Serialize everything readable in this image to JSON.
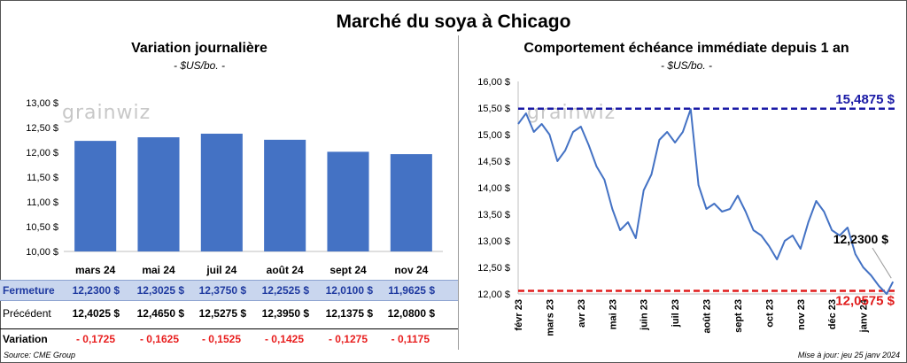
{
  "title": "Marché du soya à Chicago",
  "left_panel": {
    "title": "Variation  journalière",
    "unit": "- $US/bo. -"
  },
  "right_panel": {
    "title": "Comportement  échéance immédiate depuis 1 an",
    "unit": "- $US/bo. -"
  },
  "logo_text": "grainwiz",
  "colors": {
    "bar": "#4472c4",
    "line": "#4472c4",
    "max_line": "#1a1aa6",
    "min_line": "#e01b1b",
    "negative": "#e81e1e"
  },
  "table": {
    "rows": [
      {
        "label": "Fermeture",
        "values": [
          "12,2300  $",
          "12,3025  $",
          "12,3750  $",
          "12,2525  $",
          "12,0100  $",
          "11,9625  $"
        ]
      },
      {
        "label": "Précédent",
        "values": [
          "12,4025  $",
          "12,4650  $",
          "12,5275  $",
          "12,3950  $",
          "12,1375  $",
          "12,0800  $"
        ]
      },
      {
        "label": "Variation",
        "values": [
          "- 0,1725",
          "- 0,1625",
          "- 0,1525",
          "- 0,1425",
          "- 0,1275",
          "- 0,1175"
        ]
      }
    ]
  },
  "footer": {
    "source": "Source: CME Group",
    "updated": "Mise à jour: jeu 25 janv 2024"
  },
  "chart_data": [
    {
      "type": "bar",
      "title": "Variation  journalière",
      "ylabel": "$US/bo.",
      "categories": [
        "mars 24",
        "mai 24",
        "juil 24",
        "août 24",
        "sept 24",
        "nov 24"
      ],
      "values": [
        12.23,
        12.3025,
        12.375,
        12.2525,
        12.01,
        11.9625
      ],
      "ylim": [
        10.0,
        13.0
      ],
      "yticks": [
        10.0,
        10.5,
        11.0,
        11.5,
        12.0,
        12.5,
        13.0
      ],
      "ytick_labels": [
        "10,00 $",
        "10,50 $",
        "11,00 $",
        "11,50 $",
        "12,00 $",
        "12,50 $",
        "13,00 $"
      ]
    },
    {
      "type": "line",
      "title": "Comportement  échéance immédiate depuis 1 an",
      "ylabel": "$US/bo.",
      "ylim": [
        12.0,
        16.0
      ],
      "yticks": [
        12.0,
        12.5,
        13.0,
        13.5,
        14.0,
        14.5,
        15.0,
        15.5,
        16.0
      ],
      "ytick_labels": [
        "12,00 $",
        "12,50 $",
        "13,00 $",
        "13,50 $",
        "14,00 $",
        "14,50 $",
        "15,00 $",
        "15,50 $",
        "16,00 $"
      ],
      "xlabels": [
        "févr 23",
        "mars 23",
        "avr 23",
        "mai 23",
        "juin 23",
        "juil 23",
        "août 23",
        "sept 23",
        "oct 23",
        "nov 23",
        "déc 23",
        "janv 24"
      ],
      "x": [
        0,
        0.25,
        0.5,
        0.75,
        1.0,
        1.25,
        1.5,
        1.75,
        2.0,
        2.25,
        2.5,
        2.75,
        3.0,
        3.25,
        3.5,
        3.75,
        4.0,
        4.25,
        4.5,
        4.75,
        5.0,
        5.25,
        5.5,
        5.75,
        6.0,
        6.25,
        6.5,
        6.75,
        7.0,
        7.25,
        7.5,
        7.75,
        8.0,
        8.25,
        8.5,
        8.75,
        9.0,
        9.25,
        9.5,
        9.75,
        10.0,
        10.25,
        10.5,
        10.75,
        11.0,
        11.25,
        11.5,
        11.75,
        11.95
      ],
      "series": [
        {
          "name": "Échéance immédiate",
          "values": [
            15.2,
            15.4,
            15.05,
            15.2,
            15.0,
            14.5,
            14.7,
            15.05,
            15.15,
            14.8,
            14.4,
            14.15,
            13.6,
            13.2,
            13.35,
            13.05,
            13.95,
            14.25,
            14.9,
            15.05,
            14.85,
            15.05,
            15.48,
            14.05,
            13.6,
            13.7,
            13.55,
            13.6,
            13.85,
            13.55,
            13.2,
            13.1,
            12.9,
            12.65,
            13.0,
            13.1,
            12.85,
            13.35,
            13.75,
            13.55,
            13.2,
            13.1,
            13.25,
            12.75,
            12.5,
            12.35,
            12.15,
            12.0,
            12.23
          ]
        }
      ],
      "max_line": {
        "value": 15.4875,
        "label": "15,4875  $"
      },
      "min_line": {
        "value": 12.0575,
        "label": "12,0575  $"
      },
      "last_label": "12,2300 $"
    }
  ]
}
